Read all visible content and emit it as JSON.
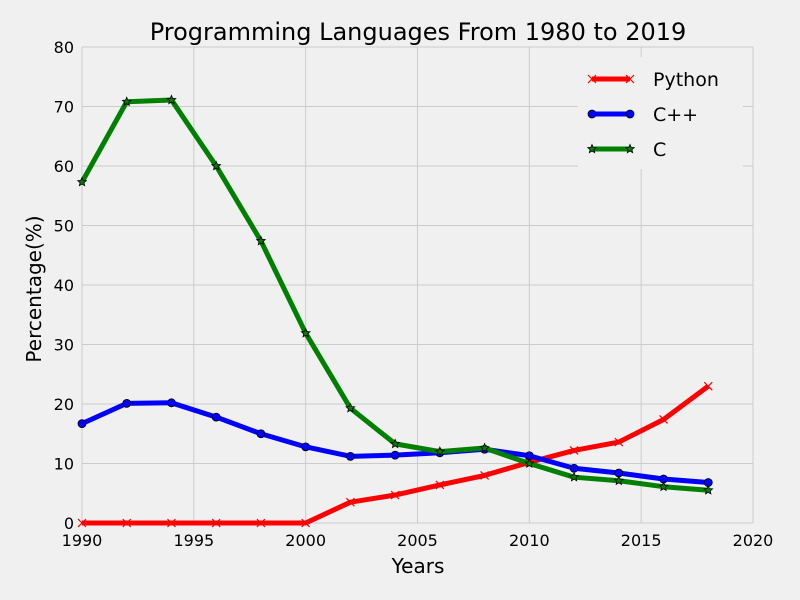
{
  "chart_data": {
    "type": "line",
    "title": "Programming Languages From 1980 to 2019",
    "xlabel": "Years",
    "ylabel": "Percentage(%)",
    "xlim": [
      1990,
      2020
    ],
    "ylim": [
      0,
      80
    ],
    "x_ticks": [
      1990,
      1995,
      2000,
      2005,
      2010,
      2015,
      2020
    ],
    "y_ticks": [
      0,
      10,
      20,
      30,
      40,
      50,
      60,
      70,
      80
    ],
    "grid": true,
    "legend_position": "top-right",
    "x": [
      1990,
      1992,
      1994,
      1996,
      1998,
      2000,
      2002,
      2004,
      2006,
      2008,
      2010,
      2012,
      2014,
      2016,
      2018
    ],
    "series": [
      {
        "name": "Python",
        "color": "#ff0000",
        "marker": "x",
        "values": [
          0,
          0,
          0,
          0,
          0,
          0,
          3.5,
          4.7,
          6.4,
          8.0,
          10.2,
          12.2,
          13.6,
          17.4,
          23.0
        ]
      },
      {
        "name": "C++",
        "color": "#0000ff",
        "marker": "circle",
        "values": [
          16.7,
          20.1,
          20.2,
          17.8,
          15.0,
          12.8,
          11.2,
          11.4,
          11.8,
          12.4,
          11.3,
          9.2,
          8.4,
          7.4,
          6.8
        ]
      },
      {
        "name": "C",
        "color": "#008000",
        "marker": "star",
        "values": [
          57.3,
          70.8,
          71.1,
          60.0,
          47.4,
          31.9,
          19.3,
          13.3,
          12.0,
          12.6,
          10.0,
          7.7,
          7.1,
          6.1,
          5.5
        ]
      }
    ]
  }
}
